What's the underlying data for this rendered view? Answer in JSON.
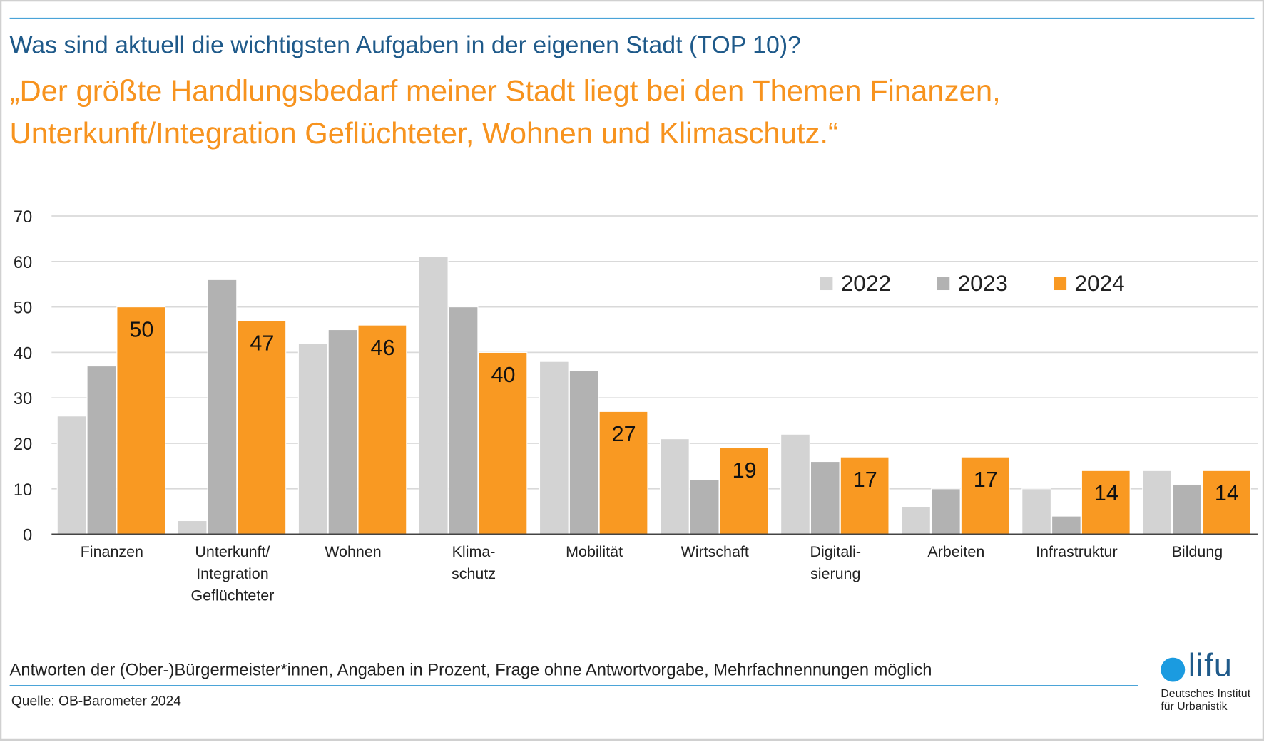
{
  "question": "Was sind aktuell die wichtigsten Aufgaben in der eigenen Stadt (TOP 10)?",
  "headline_line1": "„Der größte Handlungsbedarf meiner Stadt liegt bei den Themen Finanzen,",
  "headline_line2": "Unterkunft/Integration Geflüchteter, Wohnen und Klimaschutz.“",
  "note": "Antworten der (Ober-)Bürgermeister*innen, Angaben in Prozent, Frage ohne Antwortvorgabe, Mehrfachnennungen möglich",
  "source": "Quelle: OB-Barometer 2024",
  "logo": {
    "word": "lifu",
    "institute_line1": "Deutsches Institut",
    "institute_line2": "für Urbanistik"
  },
  "chart_data": {
    "type": "bar",
    "ylim": [
      0,
      70
    ],
    "yticks": [
      0,
      10,
      20,
      30,
      40,
      50,
      60,
      70
    ],
    "grid": true,
    "legend_placement": "top-right",
    "categories": [
      [
        "Finanzen"
      ],
      [
        "Unterkunft/",
        "Integration",
        "Geflüchteter"
      ],
      [
        "Wohnen"
      ],
      [
        "Klima-",
        "schutz"
      ],
      [
        "Mobilität"
      ],
      [
        "Wirtschaft"
      ],
      [
        "Digitali-",
        "sierung"
      ],
      [
        "Arbeiten"
      ],
      [
        "Infrastruktur"
      ],
      [
        "Bildung"
      ]
    ],
    "series": [
      {
        "name": "2022",
        "color": "#d3d3d3",
        "values": [
          26,
          3,
          42,
          61,
          38,
          21,
          22,
          6,
          10,
          14
        ]
      },
      {
        "name": "2023",
        "color": "#b2b2b2",
        "values": [
          37,
          56,
          45,
          50,
          36,
          12,
          16,
          10,
          4,
          11
        ]
      },
      {
        "name": "2024",
        "color": "#f99922",
        "values": [
          50,
          47,
          46,
          40,
          27,
          19,
          17,
          17,
          14,
          14
        ],
        "data_labels": true
      }
    ]
  }
}
